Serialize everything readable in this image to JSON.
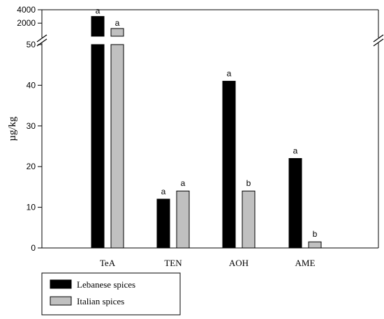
{
  "chart_data": {
    "type": "bar",
    "ylabel": "µg/kg",
    "categories": [
      "TeA",
      "TEN",
      "AOH",
      "AME"
    ],
    "series": [
      {
        "name": "Lebanese spices",
        "color": "#000000",
        "values": [
          3000,
          12,
          41,
          22
        ],
        "letters": [
          "a",
          "a",
          "a",
          "a"
        ]
      },
      {
        "name": "Italian spices",
        "color": "#c0c0c0",
        "values": [
          1200,
          14,
          14,
          1.5
        ],
        "letters": [
          "a",
          "a",
          "b",
          "b"
        ]
      }
    ],
    "y_axis_lower": {
      "range": [
        0,
        50
      ],
      "ticks": [
        0,
        10,
        20,
        30,
        40,
        50
      ]
    },
    "y_axis_upper": {
      "range": [
        50,
        4000
      ],
      "ticks": [
        2000,
        4000
      ]
    },
    "axis_break": true,
    "legend_position": "bottom-left",
    "grid": false
  }
}
